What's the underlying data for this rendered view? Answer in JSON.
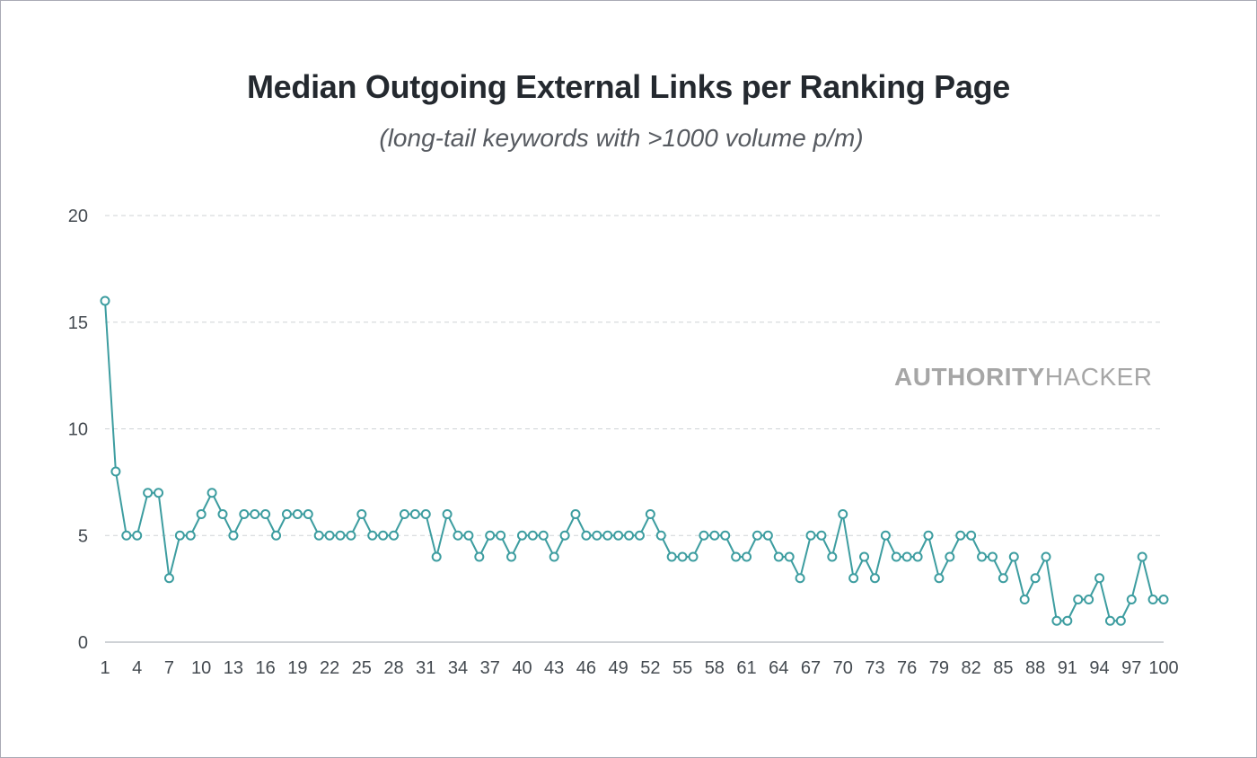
{
  "chart_data": {
    "type": "line",
    "title": "Median Outgoing External Links per Ranking Page",
    "subtitle": "(long-tail keywords with >1000 volume p/m)",
    "watermark": {
      "bold": "AUTHORITY",
      "regular": "HACKER"
    },
    "xlabel": "",
    "ylabel": "",
    "ylim": [
      0,
      20
    ],
    "yticks": [
      0,
      5,
      10,
      15,
      20
    ],
    "xticks": [
      1,
      4,
      7,
      10,
      13,
      16,
      19,
      22,
      25,
      28,
      31,
      34,
      37,
      40,
      43,
      46,
      49,
      52,
      55,
      58,
      61,
      64,
      67,
      70,
      73,
      76,
      79,
      82,
      85,
      88,
      91,
      94,
      97,
      100
    ],
    "grid": "horizontal dashed",
    "colors": {
      "line": "#3d9da0",
      "grid": "#cfd3d6",
      "axis": "#bfc4c8",
      "marker_fill": "#ffffff"
    },
    "x": [
      1,
      2,
      3,
      4,
      5,
      6,
      7,
      8,
      9,
      10,
      11,
      12,
      13,
      14,
      15,
      16,
      17,
      18,
      19,
      20,
      21,
      22,
      23,
      24,
      25,
      26,
      27,
      28,
      29,
      30,
      31,
      32,
      33,
      34,
      35,
      36,
      37,
      38,
      39,
      40,
      41,
      42,
      43,
      44,
      45,
      46,
      47,
      48,
      49,
      50,
      51,
      52,
      53,
      54,
      55,
      56,
      57,
      58,
      59,
      60,
      61,
      62,
      63,
      64,
      65,
      66,
      67,
      68,
      69,
      70,
      71,
      72,
      73,
      74,
      75,
      76,
      77,
      78,
      79,
      80,
      81,
      82,
      83,
      84,
      85,
      86,
      87,
      88,
      89,
      90,
      91,
      92,
      93,
      94,
      95,
      96,
      97,
      98,
      99,
      100
    ],
    "values": [
      16,
      8,
      5,
      5,
      7,
      7,
      3,
      5,
      5,
      6,
      7,
      6,
      5,
      6,
      6,
      6,
      5,
      6,
      6,
      6,
      5,
      5,
      5,
      5,
      6,
      5,
      5,
      5,
      6,
      6,
      6,
      4,
      6,
      5,
      5,
      4,
      5,
      5,
      4,
      5,
      5,
      5,
      4,
      5,
      6,
      5,
      5,
      5,
      5,
      5,
      5,
      6,
      5,
      4,
      4,
      4,
      5,
      5,
      5,
      4,
      4,
      5,
      5,
      4,
      4,
      3,
      5,
      5,
      4,
      6,
      3,
      4,
      3,
      5,
      4,
      4,
      4,
      5,
      3,
      4,
      5,
      5,
      4,
      4,
      3,
      4,
      2,
      3,
      4,
      1,
      1,
      2,
      2,
      3,
      1,
      1,
      2,
      4,
      2,
      2
    ]
  }
}
